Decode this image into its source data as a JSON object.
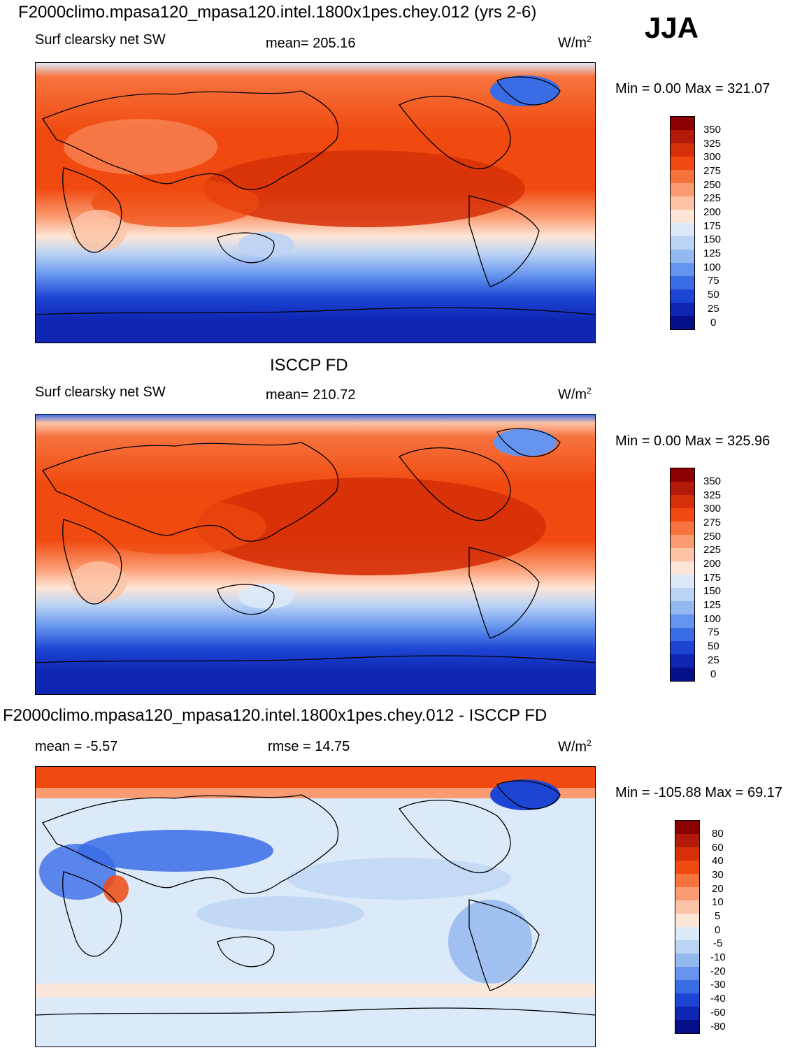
{
  "season": "JJA",
  "panels": [
    {
      "title": "F2000climo.mpasa120_mpasa120.intel.1800x1pes.chey.012 (yrs 2-6)",
      "variable": "Surf clearsky net SW",
      "stat_left": "",
      "stat_mid": "mean= 205.16",
      "units_base": "W/m",
      "units_exp": "2",
      "minmax": "Min =    0.00 Max = 321.07",
      "colorbar_labels": [
        "350",
        "325",
        "300",
        "275",
        "250",
        "225",
        "200",
        "175",
        "150",
        "125",
        "100",
        "75",
        "50",
        "25",
        "0"
      ],
      "colorbar_colors": [
        "#8b0000",
        "#b31a0a",
        "#d63008",
        "#f04a10",
        "#f7733e",
        "#fb9b71",
        "#fcc3a6",
        "#fde6d7",
        "#dbe9f8",
        "#bcd4f4",
        "#94b8f0",
        "#6594ee",
        "#3a6ce6",
        "#1d45d4",
        "#0f26b3",
        "#050f8a"
      ],
      "kind": "model"
    },
    {
      "title": "ISCCP FD",
      "variable": "Surf clearsky net SW",
      "stat_left": "",
      "stat_mid": "mean= 210.72",
      "units_base": "W/m",
      "units_exp": "2",
      "minmax": "Min =    0.00 Max = 325.96",
      "colorbar_labels": [
        "350",
        "325",
        "300",
        "275",
        "250",
        "225",
        "200",
        "175",
        "150",
        "125",
        "100",
        "75",
        "50",
        "25",
        "0"
      ],
      "colorbar_colors": [
        "#8b0000",
        "#b31a0a",
        "#d63008",
        "#f04a10",
        "#f7733e",
        "#fb9b71",
        "#fcc3a6",
        "#fde6d7",
        "#dbe9f8",
        "#bcd4f4",
        "#94b8f0",
        "#6594ee",
        "#3a6ce6",
        "#1d45d4",
        "#0f26b3",
        "#050f8a"
      ],
      "kind": "obs"
    },
    {
      "title": "F2000climo.mpasa120_mpasa120.intel.1800x1pes.chey.012 - ISCCP FD",
      "variable": "",
      "stat_left": "mean =  -5.57",
      "stat_mid": "rmse =  14.75",
      "units_base": "W/m",
      "units_exp": "2",
      "minmax": "Min = -105.88 Max =  69.17",
      "colorbar_labels": [
        "80",
        "60",
        "40",
        "30",
        "20",
        "10",
        "5",
        "0",
        "-5",
        "-10",
        "-20",
        "-30",
        "-40",
        "-60",
        "-80"
      ],
      "colorbar_colors": [
        "#8b0000",
        "#b31a0a",
        "#d63008",
        "#f04a10",
        "#f7733e",
        "#fb9b71",
        "#fcc3a6",
        "#fde6d7",
        "#dbe9f8",
        "#bcd4f4",
        "#94b8f0",
        "#6594ee",
        "#3a6ce6",
        "#1d45d4",
        "#0f26b3",
        "#050f8a"
      ],
      "kind": "diff"
    }
  ]
}
